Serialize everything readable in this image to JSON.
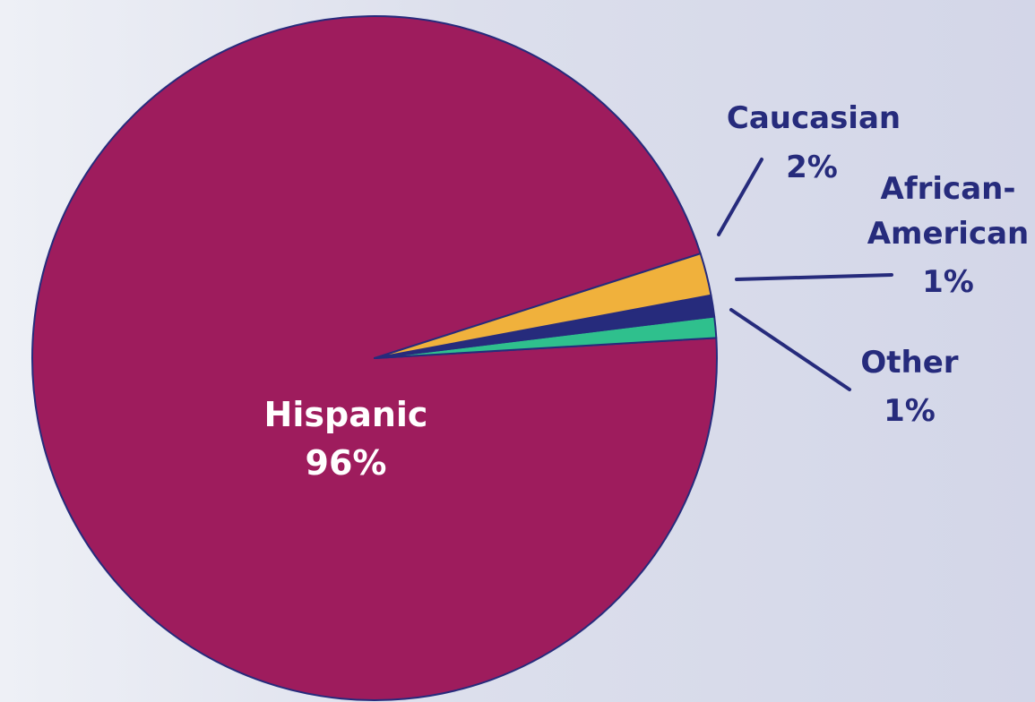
{
  "chart_data": {
    "type": "pie",
    "title": "",
    "slices": [
      {
        "label": "Hispanic",
        "value": 96,
        "value_label": "96%",
        "color": "#9e1c5d"
      },
      {
        "label": "Caucasian",
        "value": 2,
        "value_label": "2%",
        "color": "#f0b13c"
      },
      {
        "label": "African-American",
        "value": 1,
        "value_label": "1%",
        "color": "#262b7c"
      },
      {
        "label": "Other",
        "value": 1,
        "value_label": "1%",
        "color": "#2fc08d"
      }
    ],
    "label_color": "#262b7c",
    "inner_label_color": "#ffffff",
    "outline_color": "#262b7c"
  }
}
